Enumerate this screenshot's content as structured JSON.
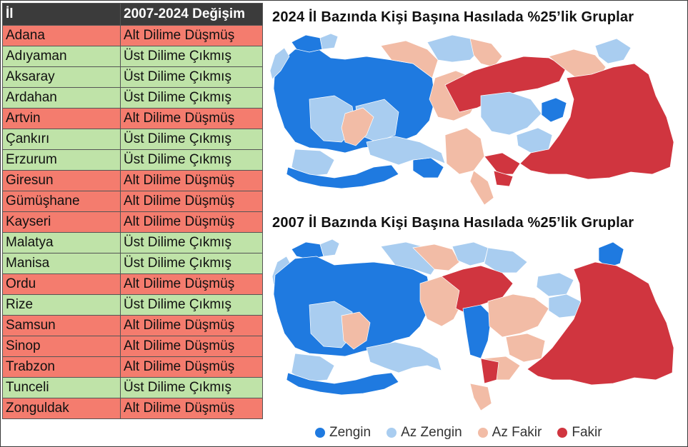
{
  "table": {
    "headers": [
      "İl",
      "2007-2024 Değişim"
    ],
    "rows": [
      {
        "il": "Adana",
        "degisim": "Alt Dilime Düşmüş",
        "status": "down"
      },
      {
        "il": "Adıyaman",
        "degisim": "Üst Dilime Çıkmış",
        "status": "up"
      },
      {
        "il": "Aksaray",
        "degisim": "Üst Dilime Çıkmış",
        "status": "up"
      },
      {
        "il": "Ardahan",
        "degisim": "Üst Dilime Çıkmış",
        "status": "up"
      },
      {
        "il": "Artvin",
        "degisim": "Alt Dilime Düşmüş",
        "status": "down"
      },
      {
        "il": "Çankırı",
        "degisim": "Üst Dilime Çıkmış",
        "status": "up"
      },
      {
        "il": "Erzurum",
        "degisim": "Üst Dilime Çıkmış",
        "status": "up"
      },
      {
        "il": "Giresun",
        "degisim": "Alt Dilime Düşmüş",
        "status": "down"
      },
      {
        "il": "Gümüşhane",
        "degisim": "Alt Dilime Düşmüş",
        "status": "down"
      },
      {
        "il": "Kayseri",
        "degisim": "Alt Dilime Düşmüş",
        "status": "down"
      },
      {
        "il": "Malatya",
        "degisim": "Üst Dilime Çıkmış",
        "status": "up"
      },
      {
        "il": "Manisa",
        "degisim": "Üst Dilime Çıkmış",
        "status": "up"
      },
      {
        "il": "Ordu",
        "degisim": "Alt Dilime Düşmüş",
        "status": "down"
      },
      {
        "il": "Rize",
        "degisim": "Üst Dilime Çıkmış",
        "status": "up"
      },
      {
        "il": "Samsun",
        "degisim": "Alt Dilime Düşmüş",
        "status": "down"
      },
      {
        "il": "Sinop",
        "degisim": "Alt Dilime Düşmüş",
        "status": "down"
      },
      {
        "il": "Trabzon",
        "degisim": "Alt Dilime Düşmüş",
        "status": "down"
      },
      {
        "il": "Tunceli",
        "degisim": "Üst Dilime Çıkmış",
        "status": "up"
      },
      {
        "il": "Zonguldak",
        "degisim": "Alt Dilime Düşmüş",
        "status": "down"
      }
    ]
  },
  "maps": {
    "map_2024": {
      "title": "2024 İl Bazında Kişi Başına Hasılada %25’lik Gruplar"
    },
    "map_2007": {
      "title": "2007 İl Bazında Kişi Başına Hasılada %25’lik Gruplar"
    }
  },
  "legend": {
    "items": [
      {
        "label": "Zengin",
        "color": "#1f7ae0"
      },
      {
        "label": "Az Zengin",
        "color": "#a9cdf0"
      },
      {
        "label": "Az Fakir",
        "color": "#f2bca6"
      },
      {
        "label": "Fakir",
        "color": "#d0353f"
      }
    ]
  },
  "colors": {
    "status_down": "#f47c6e",
    "status_up": "#bfe3a8",
    "header_bg": "#3b3b3b"
  }
}
